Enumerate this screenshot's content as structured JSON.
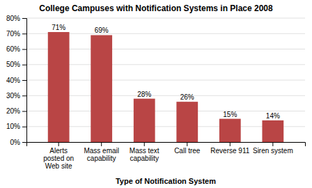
{
  "chart_data": {
    "type": "bar",
    "title": "College Campuses with Notification Systems in Place 2008",
    "xlabel": "Type of Notification System",
    "categories": [
      "Alerts\nposted on\nWeb site",
      "Mass email\ncapability",
      "Mass text\ncapability",
      "Call tree",
      "Reverse 911",
      "Siren system"
    ],
    "values": [
      71,
      69,
      28,
      26,
      15,
      14
    ],
    "value_labels": [
      "71%",
      "69%",
      "28%",
      "26%",
      "15%",
      "14%"
    ],
    "data_labels": true,
    "color": "#b94545",
    "ylim": [
      0,
      80
    ],
    "yticks": [
      {
        "value": 0,
        "label": "0%"
      },
      {
        "value": 10,
        "label": "10%"
      },
      {
        "value": 20,
        "label": "20%"
      },
      {
        "value": 30,
        "label": "30%"
      },
      {
        "value": 40,
        "label": "40%"
      },
      {
        "value": 50,
        "label": "50%"
      },
      {
        "value": 60,
        "label": "60%"
      },
      {
        "value": 70,
        "label": "70%"
      },
      {
        "value": 80,
        "label": "80%"
      }
    ],
    "grid": true
  }
}
